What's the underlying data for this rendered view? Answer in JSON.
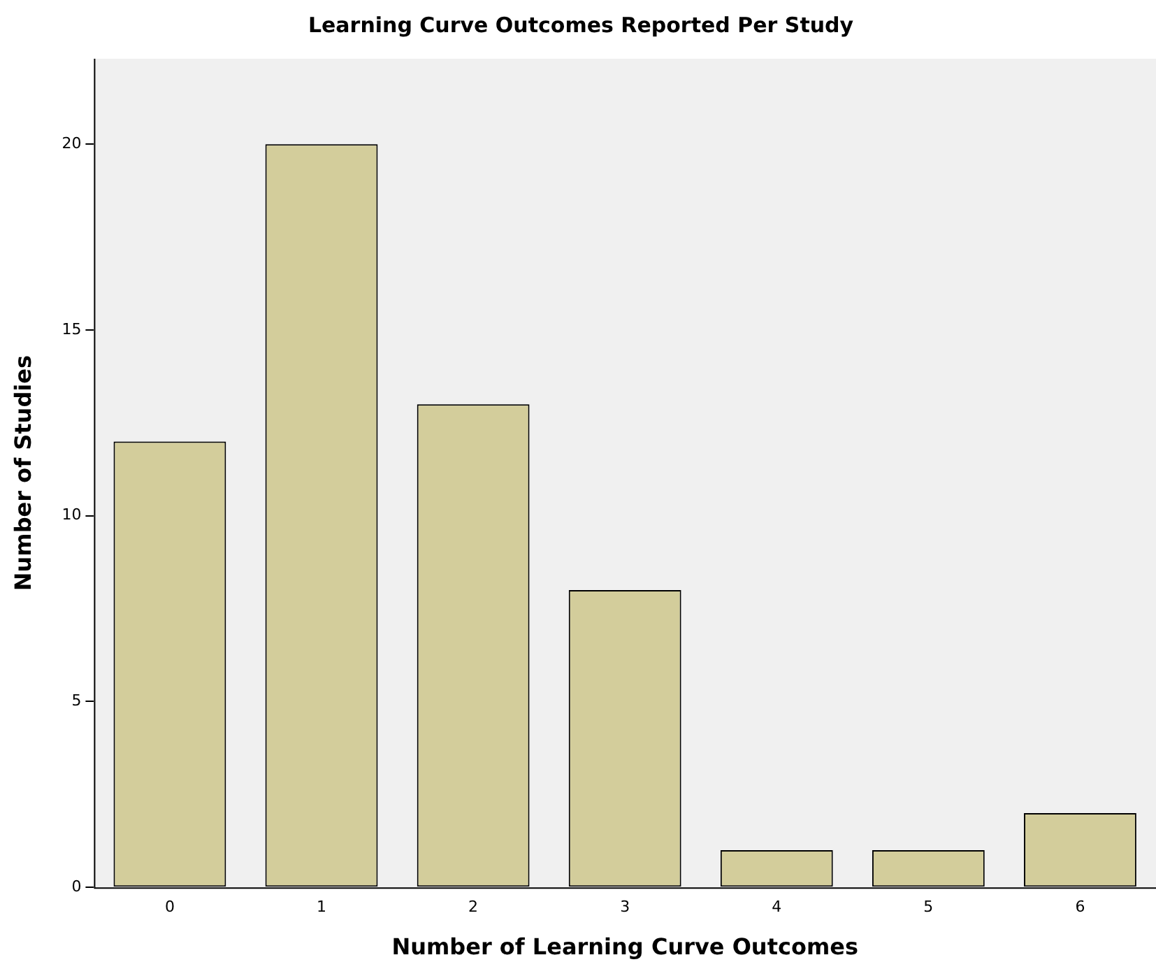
{
  "chart_data": {
    "type": "bar",
    "title": "Learning Curve Outcomes Reported Per Study",
    "xlabel": "Number of Learning Curve Outcomes",
    "ylabel": "Number of Studies",
    "categories": [
      "0",
      "1",
      "2",
      "3",
      "4",
      "5",
      "6"
    ],
    "values": [
      12,
      20,
      13,
      8,
      1,
      1,
      2
    ],
    "color": "#d3cd9b",
    "ylim": [
      0,
      22.3
    ],
    "yticks": [
      0,
      5,
      10,
      15,
      20
    ],
    "grid": false,
    "legend": false
  }
}
